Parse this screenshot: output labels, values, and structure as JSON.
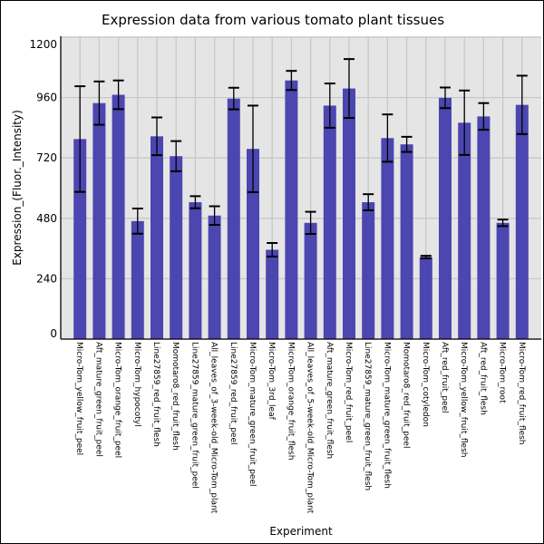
{
  "chart_data": {
    "type": "bar",
    "title": "Expression data from various tomato plant tissues",
    "xlabel": "Experiment",
    "ylabel": "Expression_(Fluor._Intensity)",
    "ylim": [
      0,
      1200
    ],
    "yticks": [
      0,
      240,
      480,
      720,
      960,
      1200
    ],
    "grid": true,
    "bar_color": "#4b46b0",
    "background_color": "#e5e5e5",
    "categories": [
      "Micro-Tom_yellow_fruit_peel",
      "Aft_mature_green_fruit_peel",
      "Micro-Tom_orange_fruit_peel",
      "Micro-Tom_hypocotyl",
      "Line27859_red_fruit_flesh",
      "Momotaro8_red_fruit_flesh",
      "Line27859_mature_green_fruit_peel",
      "All_leaves_of_3-week-old_Micro-Tom_plant",
      "Line27859_red_fruit_peel",
      "Micro-Tom_mature_green_fruit_peel",
      "Micro-Tom_3rd_leaf",
      "Micro-Tom_orange_fruit_flesh",
      "All_leaves_of_5-week-old_Micro-Tom_plant",
      "Aft_mature_green_fruit_flesh",
      "Micro-Tom_red_fruit_peel",
      "Line27859_mature_green_fruit_flesh",
      "Micro-Tom_mature_green_fruit_flesh",
      "Momotaro8_red_fruit_peel",
      "Micro-Tom_cotyledon",
      "Aft_red_fruit_peel",
      "Micro-Tom_yellow_fruit_flesh",
      "Aft_red_fruit_flesh",
      "Micro-Tom_root",
      "Micro-Tom_red_fruit_flesh"
    ],
    "values": [
      795,
      938,
      971,
      469,
      806,
      727,
      544,
      491,
      956,
      756,
      355,
      1028,
      462,
      928,
      996,
      544,
      799,
      774,
      326,
      959,
      860,
      885,
      462,
      931
    ],
    "errors": [
      210,
      86,
      57,
      50,
      75,
      60,
      24,
      37,
      43,
      172,
      27,
      38,
      44,
      88,
      117,
      32,
      94,
      30,
      5,
      41,
      128,
      53,
      13,
      116
    ]
  }
}
